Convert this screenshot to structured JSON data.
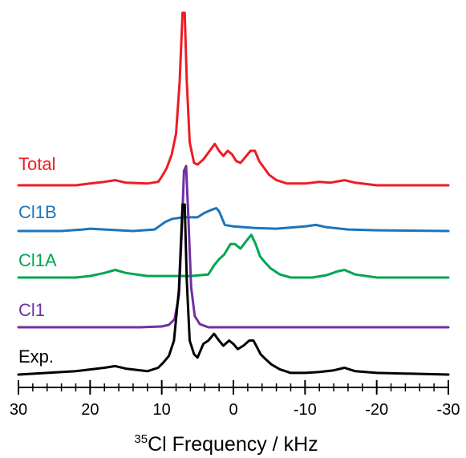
{
  "chart_data": {
    "type": "line",
    "title": "",
    "xlabel_sup": "35",
    "xlabel": "Cl Frequency / kHz",
    "ylabel": "",
    "xlim": [
      30,
      -30
    ],
    "xticks": [
      "30",
      "20",
      "10",
      "0",
      "-10",
      "-20",
      "-30"
    ],
    "xtick_values": [
      30,
      20,
      10,
      0,
      -10,
      -20,
      -30
    ],
    "minor_tick_step": 2,
    "legend": "inline labels at left of each trace",
    "series": [
      {
        "name": "Total",
        "color": "#ee1c24",
        "baseline": 0.0,
        "points": [
          [
            30,
            0.0
          ],
          [
            22,
            0.0
          ],
          [
            20,
            0.01
          ],
          [
            18,
            0.02
          ],
          [
            16.5,
            0.03
          ],
          [
            15,
            0.015
          ],
          [
            12,
            0.01
          ],
          [
            10.5,
            0.02
          ],
          [
            10,
            0.05
          ],
          [
            9.3,
            0.1
          ],
          [
            8.6,
            0.18
          ],
          [
            8,
            0.3
          ],
          [
            7.5,
            0.6
          ],
          [
            7.1,
            1.0
          ],
          [
            6.8,
            1.0
          ],
          [
            6.5,
            0.6
          ],
          [
            6.1,
            0.25
          ],
          [
            5.5,
            0.13
          ],
          [
            5,
            0.12
          ],
          [
            4.2,
            0.15
          ],
          [
            3.3,
            0.2
          ],
          [
            2.6,
            0.24
          ],
          [
            2,
            0.2
          ],
          [
            1.4,
            0.17
          ],
          [
            0.8,
            0.2
          ],
          [
            0.2,
            0.18
          ],
          [
            -0.4,
            0.14
          ],
          [
            -1,
            0.13
          ],
          [
            -1.8,
            0.17
          ],
          [
            -2.4,
            0.2
          ],
          [
            -3,
            0.2
          ],
          [
            -3.6,
            0.14
          ],
          [
            -4.3,
            0.1
          ],
          [
            -5,
            0.06
          ],
          [
            -6,
            0.03
          ],
          [
            -7.5,
            0.01
          ],
          [
            -10,
            0.01
          ],
          [
            -12,
            0.02
          ],
          [
            -13.5,
            0.015
          ],
          [
            -15.5,
            0.03
          ],
          [
            -17,
            0.015
          ],
          [
            -20,
            0.0
          ],
          [
            -30,
            0.0
          ]
        ]
      },
      {
        "name": "Cl1B",
        "color": "#1b75bc",
        "baseline": 0.0,
        "points": [
          [
            30,
            0.0
          ],
          [
            24,
            0.0
          ],
          [
            21,
            0.01
          ],
          [
            20,
            0.015
          ],
          [
            18,
            0.01
          ],
          [
            14,
            0.0
          ],
          [
            11,
            0.01
          ],
          [
            10.4,
            0.03
          ],
          [
            9.5,
            0.06
          ],
          [
            8.5,
            0.08
          ],
          [
            7,
            0.09
          ],
          [
            5,
            0.09
          ],
          [
            4,
            0.12
          ],
          [
            3,
            0.14
          ],
          [
            2.4,
            0.15
          ],
          [
            2,
            0.13
          ],
          [
            1.2,
            0.04
          ],
          [
            0,
            0.03
          ],
          [
            -3,
            0.02
          ],
          [
            -6,
            0.015
          ],
          [
            -10,
            0.03
          ],
          [
            -11.5,
            0.04
          ],
          [
            -13,
            0.025
          ],
          [
            -16,
            0.01
          ],
          [
            -20,
            0.005
          ],
          [
            -30,
            0.0
          ]
        ]
      },
      {
        "name": "Cl1A",
        "color": "#00a651",
        "baseline": 0.0,
        "points": [
          [
            30,
            0.0
          ],
          [
            22,
            0.0
          ],
          [
            20,
            0.01
          ],
          [
            18,
            0.03
          ],
          [
            16.5,
            0.05
          ],
          [
            15,
            0.03
          ],
          [
            12,
            0.01
          ],
          [
            6,
            0.01
          ],
          [
            3.5,
            0.02
          ],
          [
            2.7,
            0.08
          ],
          [
            2,
            0.12
          ],
          [
            1.3,
            0.15
          ],
          [
            0.4,
            0.22
          ],
          [
            -0.2,
            0.22
          ],
          [
            -1,
            0.19
          ],
          [
            -1.8,
            0.24
          ],
          [
            -2.5,
            0.28
          ],
          [
            -3.1,
            0.22
          ],
          [
            -3.7,
            0.14
          ],
          [
            -4.4,
            0.1
          ],
          [
            -5.2,
            0.06
          ],
          [
            -6.5,
            0.02
          ],
          [
            -8,
            0.0
          ],
          [
            -11,
            0.0
          ],
          [
            -13,
            0.015
          ],
          [
            -14.5,
            0.04
          ],
          [
            -15.5,
            0.05
          ],
          [
            -17,
            0.02
          ],
          [
            -20,
            0.0
          ],
          [
            -30,
            0.0
          ]
        ]
      },
      {
        "name": "Cl1",
        "color": "#7030a0",
        "baseline": 0.0,
        "points": [
          [
            30,
            0.0
          ],
          [
            13,
            0.0
          ],
          [
            10,
            0.005
          ],
          [
            9,
            0.015
          ],
          [
            8.2,
            0.05
          ],
          [
            7.6,
            0.2
          ],
          [
            7.2,
            0.6
          ],
          [
            6.9,
            0.97
          ],
          [
            6.6,
            1.0
          ],
          [
            6.3,
            0.7
          ],
          [
            5.9,
            0.25
          ],
          [
            5.4,
            0.07
          ],
          [
            4.7,
            0.02
          ],
          [
            3.5,
            0.0
          ],
          [
            -30,
            0.0
          ]
        ]
      },
      {
        "name": "Exp.",
        "color": "#000000",
        "baseline": 0.0,
        "points": [
          [
            30,
            0.0
          ],
          [
            26,
            0.01
          ],
          [
            22,
            0.02
          ],
          [
            20,
            0.03
          ],
          [
            18,
            0.04
          ],
          [
            16.5,
            0.05
          ],
          [
            15,
            0.035
          ],
          [
            12,
            0.02
          ],
          [
            10.5,
            0.04
          ],
          [
            9.8,
            0.07
          ],
          [
            9,
            0.11
          ],
          [
            8.3,
            0.2
          ],
          [
            7.6,
            0.5
          ],
          [
            7.1,
            1.0
          ],
          [
            6.8,
            1.0
          ],
          [
            6.5,
            0.55
          ],
          [
            6.1,
            0.2
          ],
          [
            5.5,
            0.12
          ],
          [
            5,
            0.1
          ],
          [
            4.2,
            0.18
          ],
          [
            3.5,
            0.2
          ],
          [
            2.7,
            0.24
          ],
          [
            2,
            0.2
          ],
          [
            1.4,
            0.17
          ],
          [
            0.6,
            0.2
          ],
          [
            0,
            0.18
          ],
          [
            -0.6,
            0.15
          ],
          [
            -1.4,
            0.17
          ],
          [
            -2.2,
            0.2
          ],
          [
            -2.8,
            0.2
          ],
          [
            -3.3,
            0.16
          ],
          [
            -3.8,
            0.12
          ],
          [
            -4.5,
            0.09
          ],
          [
            -5.3,
            0.06
          ],
          [
            -6.5,
            0.03
          ],
          [
            -8,
            0.01
          ],
          [
            -10,
            0.01
          ],
          [
            -12,
            0.015
          ],
          [
            -14,
            0.025
          ],
          [
            -15.5,
            0.04
          ],
          [
            -17,
            0.02
          ],
          [
            -20,
            0.01
          ],
          [
            -30,
            0.0
          ]
        ]
      }
    ]
  }
}
